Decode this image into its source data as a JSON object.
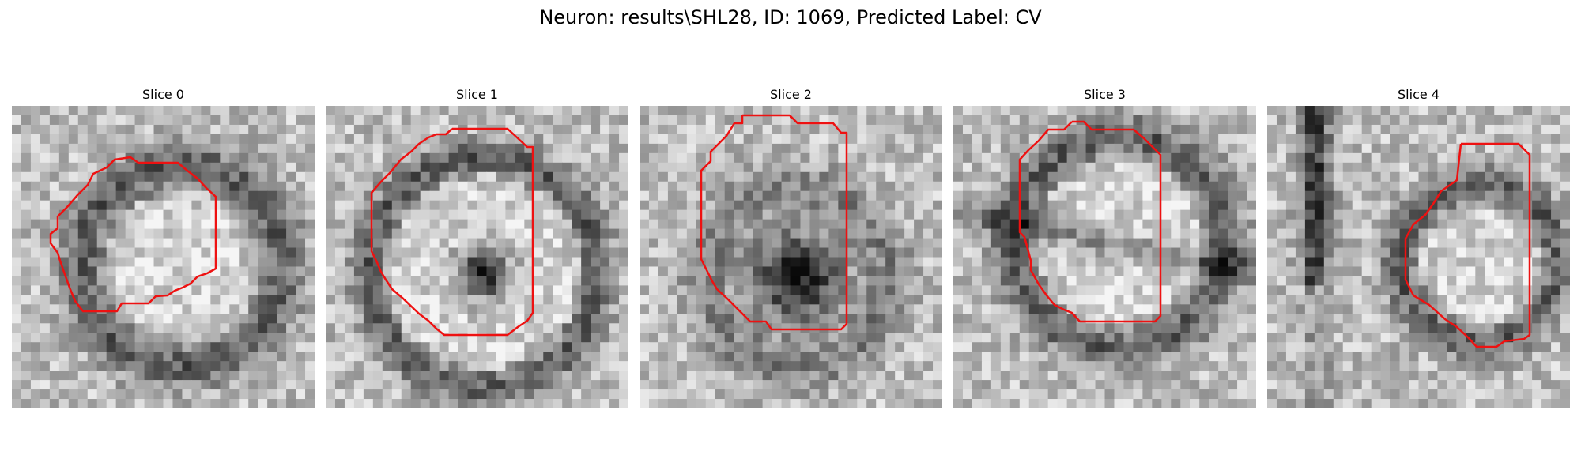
{
  "figure": {
    "title": "Neuron: results\\SHL28, ID: 1069, Predicted Label: CV",
    "contour_color": "#ee1111"
  },
  "slices": [
    {
      "title": "Slice 0"
    },
    {
      "title": "Slice 1"
    },
    {
      "title": "Slice 2"
    },
    {
      "title": "Slice 3"
    },
    {
      "title": "Slice 4"
    }
  ]
}
